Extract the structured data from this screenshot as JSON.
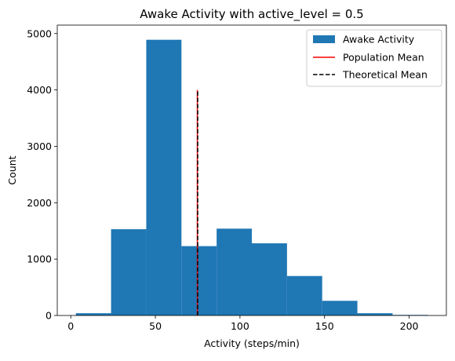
{
  "chart_data": {
    "type": "bar",
    "title": "Awake Activity with active_level = 0.5",
    "xlabel": "Activity (steps/min)",
    "ylabel": "Count",
    "xlim": [
      -8,
      222
    ],
    "ylim": [
      0,
      5150
    ],
    "xticks": [
      0,
      50,
      100,
      150,
      200
    ],
    "yticks": [
      0,
      1000,
      2000,
      3000,
      4000,
      5000
    ],
    "grid": false,
    "legend_position": "top-right",
    "series": [
      {
        "name": "Awake Activity",
        "type": "histogram",
        "color": "#1f77b4",
        "bin_edges": [
          3,
          23.8,
          44.6,
          65.4,
          86.2,
          107,
          127.8,
          148.6,
          169.4,
          190.2,
          211
        ],
        "counts": [
          40,
          1530,
          4890,
          1230,
          1540,
          1280,
          700,
          260,
          40,
          10
        ]
      },
      {
        "name": "Population Mean",
        "type": "vline",
        "x": 74.8,
        "ymax": 4000,
        "color": "#ff0000",
        "style": "solid"
      },
      {
        "name": "Theoretical Mean",
        "type": "vline",
        "x": 75,
        "ymax": 4000,
        "color": "#000000",
        "style": "dashed"
      }
    ]
  }
}
